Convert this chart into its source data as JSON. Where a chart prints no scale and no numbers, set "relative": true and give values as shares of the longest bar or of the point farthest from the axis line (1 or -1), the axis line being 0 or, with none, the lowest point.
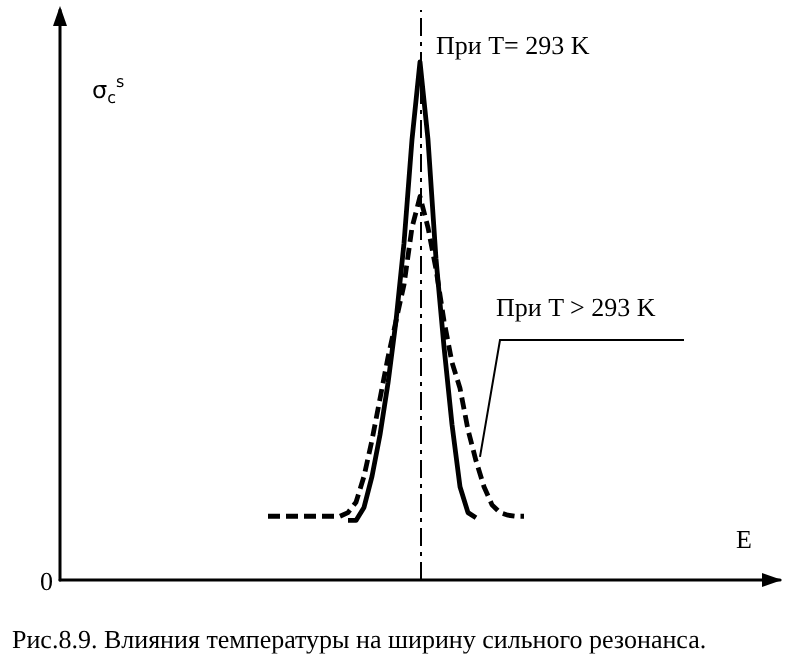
{
  "chart_data": {
    "type": "line",
    "relative": true,
    "xlabel": "E",
    "ylabel": "σ$_{c}$$^{s}$",
    "categories": [
      null,
      null,
      null,
      null,
      null,
      null,
      null,
      null,
      null,
      null,
      null,
      null,
      null,
      null,
      null,
      null,
      null,
      null,
      null,
      null,
      null,
      null,
      null,
      null,
      null,
      null,
      null,
      null,
      null,
      null,
      null,
      null,
      null,
      null,
      null,
      null,
      null,
      null,
      null,
      null,
      null,
      null,
      null,
      null,
      null,
      null,
      null,
      null,
      null,
      null,
      null,
      null,
      null,
      null,
      null,
      null,
      null,
      null,
      null,
      null,
      null,
      null,
      null,
      null,
      null,
      null,
      null,
      null,
      null,
      null,
      null,
      null,
      null,
      null,
      null,
      null,
      null,
      null,
      null,
      null,
      null,
      null,
      null,
      null,
      null,
      null,
      null,
      null,
      null,
      null,
      null
    ],
    "series": [
      {
        "color": "#000000",
        "line_style": "solid",
        "values": [
          null,
          null,
          null,
          null,
          null,
          null,
          null,
          null,
          null,
          null,
          null,
          null,
          null,
          null,
          null,
          null,
          null,
          null,
          null,
          null,
          null,
          null,
          null,
          null,
          null,
          null,
          null,
          null,
          null,
          null,
          null,
          null,
          null,
          null,
          null,
          null,
          0.115,
          0.115,
          0.14,
          0.2,
          0.28,
          0.38,
          0.5,
          0.65,
          0.85,
          1.0,
          0.85,
          0.62,
          0.45,
          0.3,
          0.18,
          0.13,
          0.12,
          null,
          null,
          null,
          null,
          null,
          null,
          null,
          null,
          null,
          null,
          null,
          null,
          null,
          null,
          null,
          null,
          null,
          null,
          null,
          null,
          null,
          null,
          null,
          null,
          null,
          null,
          null,
          null,
          null,
          null,
          null,
          null,
          null,
          null,
          null,
          null,
          null,
          null
        ]
      },
      {
        "color": "#000000",
        "line_style": "dashed",
        "values": [
          null,
          null,
          null,
          null,
          null,
          null,
          null,
          null,
          null,
          null,
          null,
          null,
          null,
          null,
          null,
          null,
          null,
          null,
          null,
          null,
          null,
          null,
          null,
          null,
          null,
          null,
          0.123,
          0.123,
          0.123,
          0.123,
          0.123,
          0.123,
          0.123,
          0.123,
          0.123,
          0.123,
          0.13,
          0.15,
          0.2,
          0.27,
          0.35,
          0.43,
          0.5,
          0.57,
          0.68,
          0.74,
          0.68,
          0.6,
          0.5,
          0.42,
          0.37,
          0.29,
          0.23,
          0.18,
          0.145,
          0.13,
          0.125,
          0.123,
          0.123,
          null,
          null,
          null,
          null,
          null,
          null,
          null,
          null,
          null,
          null,
          null,
          null,
          null,
          null,
          null,
          null,
          null,
          null,
          null,
          null,
          null,
          null,
          null,
          null,
          null,
          null,
          null,
          null,
          null,
          null,
          null,
          null
        ]
      }
    ],
    "annotations": [
      "При T= 293 K",
      "При T > 293 K",
      "0",
      "Рис.8.9. Влияния температуры на ширину сильного резонанса."
    ],
    "grid": false
  }
}
